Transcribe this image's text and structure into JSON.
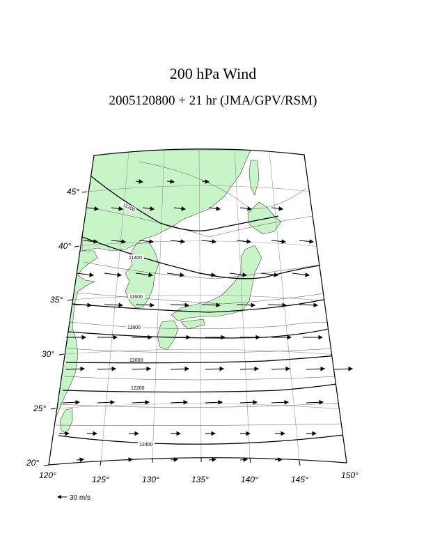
{
  "title": "200 hPa Wind",
  "subtitle": "2005120800 + 21 hr (JMA/GPV/RSM)",
  "lat_labels": [
    "45°",
    "40°",
    "35°",
    "30°",
    "25°",
    "20°"
  ],
  "lon_labels": [
    "120°",
    "125°",
    "130°",
    "135°",
    "140°",
    "145°",
    "150°"
  ],
  "contour_labels": [
    "11200",
    "11400",
    "11600",
    "11800",
    "12000",
    "12200",
    "12400"
  ],
  "legend": {
    "scale_text": "30 m/s"
  },
  "colors": {
    "land": "#c8f5c8",
    "water": "#ffffff",
    "contour": "#000000"
  }
}
